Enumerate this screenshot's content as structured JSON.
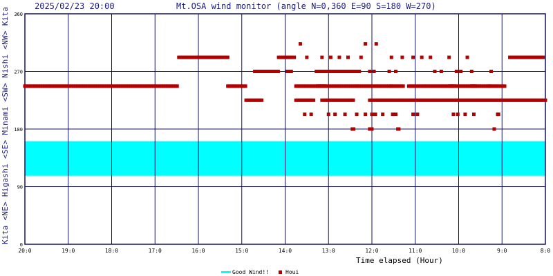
{
  "header": {
    "datetime": "2025/02/23 20:00",
    "title": "Mt.OSA wind monitor (angle N=0,360 E=90 S=180 W=270)"
  },
  "side_labels": [
    "Kita",
    "<NE>",
    "Higashi",
    "<SE>",
    "Minami",
    "<SW>",
    "Nishi",
    "<NW>",
    "Kita"
  ],
  "colors": {
    "grid": "#101060",
    "good_band": "#00ffff",
    "points": "#b00000",
    "text": "#1a1a7a"
  },
  "chart_data": {
    "type": "scatter",
    "xlabel": "Time elapsed (Hour)",
    "x_ticks": [
      "20:0",
      "19:0",
      "18:0",
      "17:0",
      "16:0",
      "15:0",
      "14:0",
      "13:0",
      "12:0",
      "11:0",
      "10:0",
      "9:0",
      "8:0"
    ],
    "y_ticks": [
      0,
      90,
      180,
      270,
      360
    ],
    "ylim": [
      0,
      360
    ],
    "xlim_hours_elapsed": [
      0,
      12
    ],
    "grid": true,
    "good_wind_range": [
      107,
      161
    ],
    "legend": {
      "placement": "bottom-center",
      "good_label": "Good Wind!!",
      "points_label": "Houi"
    },
    "series": [
      {
        "name": "Houi",
        "segments": [
          [
            0.0,
            3.55,
            247
          ],
          [
            3.55,
            4.68,
            292
          ],
          [
            4.68,
            5.1,
            247
          ],
          [
            5.1,
            5.5,
            225
          ],
          [
            5.3,
            5.85,
            270
          ],
          [
            5.85,
            6.25,
            292
          ],
          [
            6.05,
            6.15,
            270
          ],
          [
            6.25,
            6.95,
            247
          ],
          [
            6.25,
            6.68,
            225
          ],
          [
            6.75,
            7.65,
            247
          ],
          [
            6.72,
            7.75,
            270
          ],
          [
            6.85,
            7.6,
            225
          ],
          [
            7.68,
            8.12,
            247
          ],
          [
            7.95,
            12.0,
            225
          ],
          [
            8.12,
            8.45,
            247
          ],
          [
            8.45,
            8.75,
            247
          ],
          [
            8.85,
            9.9,
            247
          ],
          [
            9.8,
            10.4,
            247
          ],
          [
            10.3,
            10.72,
            247
          ],
          [
            10.7,
            11.1,
            247
          ],
          [
            11.18,
            11.98,
            292
          ]
        ],
        "points": [
          [
            6.35,
            313
          ],
          [
            6.5,
            292
          ],
          [
            6.85,
            292
          ],
          [
            7.05,
            292
          ],
          [
            7.25,
            292
          ],
          [
            7.45,
            292
          ],
          [
            7.75,
            292
          ],
          [
            7.85,
            313
          ],
          [
            8.1,
            313
          ],
          [
            8.45,
            292
          ],
          [
            8.7,
            292
          ],
          [
            8.95,
            292
          ],
          [
            9.15,
            292
          ],
          [
            9.35,
            292
          ],
          [
            9.45,
            270
          ],
          [
            9.6,
            270
          ],
          [
            9.78,
            292
          ],
          [
            9.95,
            270
          ],
          [
            10.2,
            292
          ],
          [
            10.3,
            270
          ],
          [
            10.75,
            270
          ],
          [
            6.45,
            203
          ],
          [
            6.6,
            203
          ],
          [
            7.0,
            203
          ],
          [
            7.15,
            203
          ],
          [
            7.38,
            203
          ],
          [
            7.65,
            203
          ],
          [
            7.85,
            203
          ],
          [
            8.0,
            203
          ],
          [
            8.08,
            203
          ],
          [
            8.25,
            203
          ],
          [
            8.55,
            203
          ],
          [
            8.95,
            203
          ],
          [
            9.05,
            203
          ],
          [
            9.88,
            203
          ],
          [
            9.98,
            203
          ],
          [
            10.15,
            203
          ],
          [
            10.35,
            203
          ],
          [
            10.9,
            203
          ],
          [
            10.92,
            203
          ],
          [
            7.55,
            180
          ],
          [
            7.58,
            180
          ],
          [
            7.95,
            180
          ],
          [
            8.0,
            180
          ],
          [
            8.6,
            180
          ],
          [
            10.82,
            180
          ],
          [
            7.2,
            270
          ],
          [
            7.3,
            270
          ],
          [
            7.95,
            270
          ],
          [
            8.05,
            270
          ],
          [
            8.4,
            270
          ],
          [
            8.55,
            270
          ],
          [
            9.45,
            270
          ],
          [
            10.05,
            270
          ],
          [
            8.48,
            203
          ],
          [
            8.62,
            180
          ]
        ]
      }
    ]
  }
}
